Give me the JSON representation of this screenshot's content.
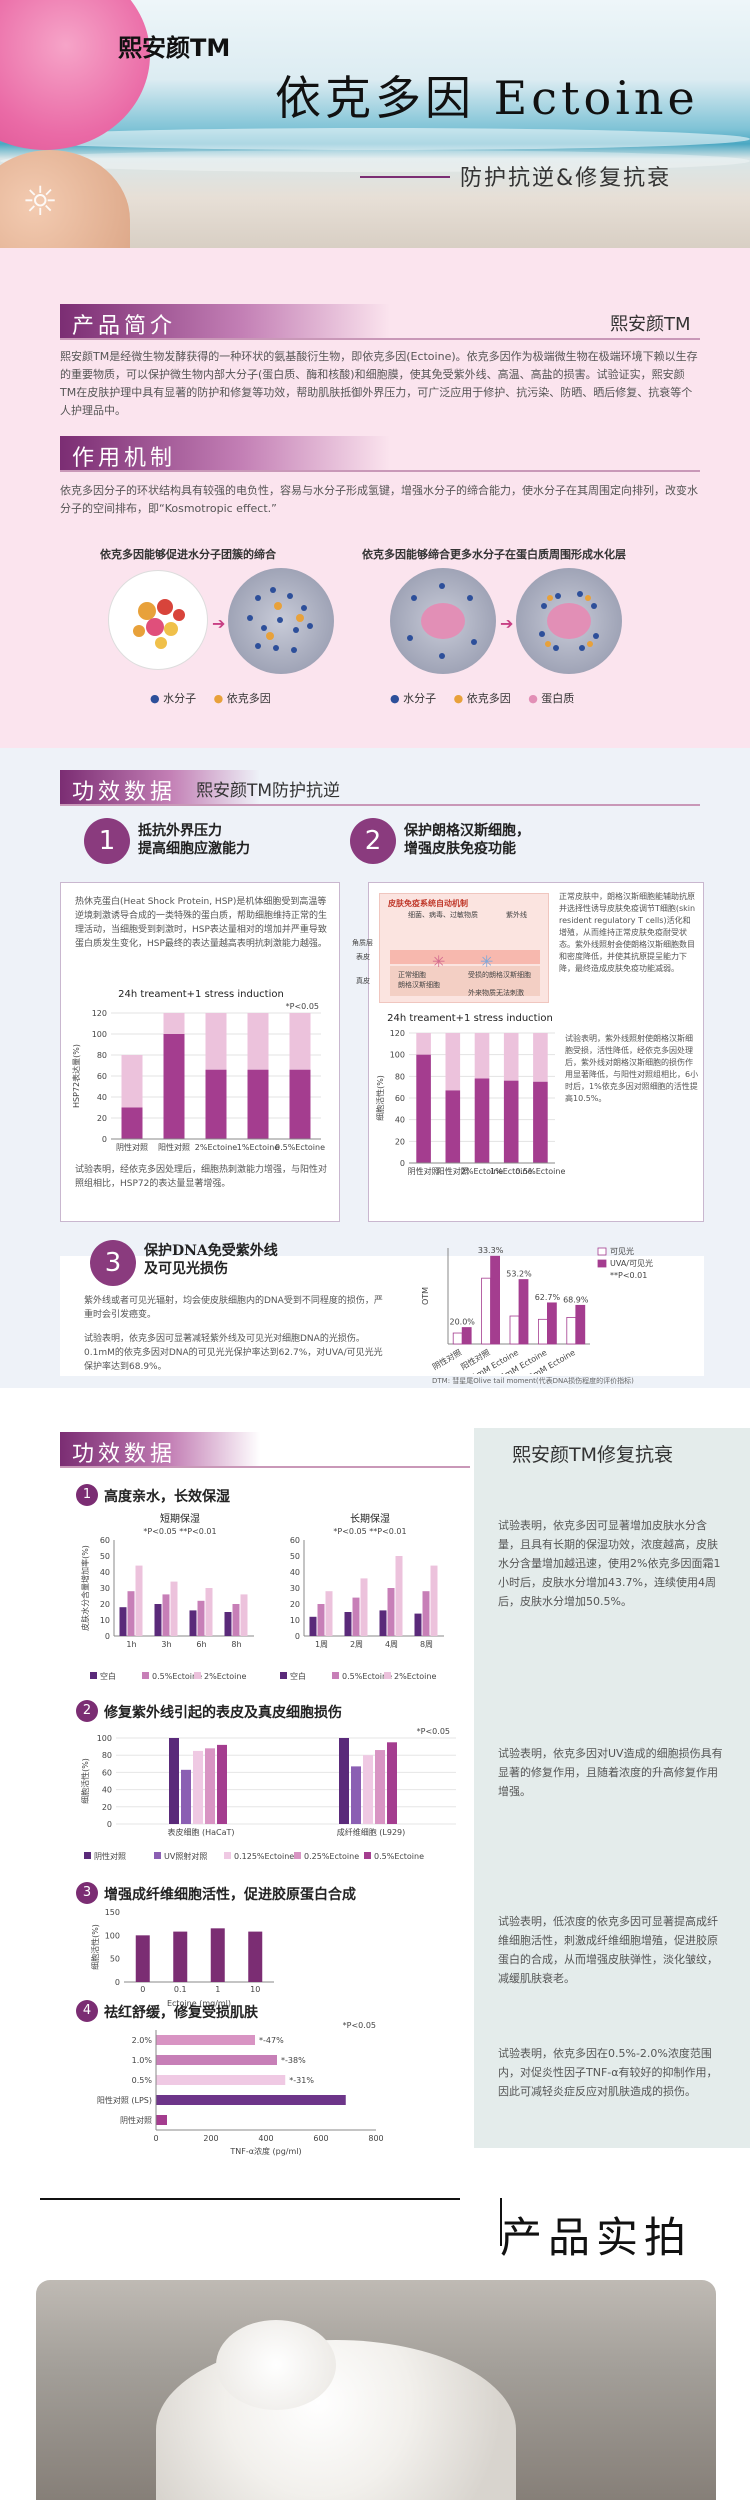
{
  "hero": {
    "brand": "熙安颜TM",
    "title": "依克多因 Ectoine",
    "subtitle": "防护抗逆&修复抗衰"
  },
  "intro": {
    "section_title": "产品简介",
    "brand": "熙安颜TM",
    "paragraph": "熙安颜TM是经微生物发酵获得的一种环状的氨基酸衍生物，即依克多因(Ectoine)。依克多因作为极端微生物在极端环境下赖以生存的重要物质，可以保护微生物内部大分子(蛋白质、酶和核酸)和细胞膜，使其免受紫外线、高温、高盐的损害。试验证实，熙安颜TM在皮肤护理中具有显著的防护和修复等功效，帮助肌肤抵御外界压力，可广泛应用于修护、抗污染、防晒、晒后修复、抗衰等个人护理品中。"
  },
  "mechanism": {
    "section_title": "作用机制",
    "paragraph": "依克多因分子的环状结构具有较强的电负性，容易与水分子形成氢键，增强水分子的缔合能力，使水分子在其周围定向排列，改变水分子的空间排布，即“Kosmotropic effect.”",
    "left_caption": "依克多因能够促进水分子团簇的缔合",
    "right_caption": "依克多因能够缔合更多水分子在蛋白质周围形成水化层",
    "legend_left": [
      "水分子",
      "依克多因"
    ],
    "legend_right": [
      "水分子",
      "依克多因",
      "蛋白质"
    ]
  },
  "efficacy1": {
    "section_title": "功效数据",
    "brand": "熙安颜TM防护抗逆",
    "card1": {
      "number": "1",
      "title": "抵抗外界压力\n提高细胞应激能力",
      "text": "热休克蛋白(Heat Shock Protein, HSP)是机体细胞受到高温等逆境刺激诱导合成的一类特殊的蛋白质，帮助细胞维持正常的生理活动，当细胞受到刺激时，HSP表达量相对的增加并严重导致蛋白质发生变化，HSP最终的表达量越高表明抗刺激能力越强。",
      "footer": "试验表明，经依克多因处理后，细胞热刺激能力增强，与阳性对照组相比，HSP72的表达量显著增强。"
    },
    "card2": {
      "number": "2",
      "title": "保护朗格汉斯细胞，\n增强皮肤免疫功能",
      "diagram_title": "皮肤免疫系统自动机制",
      "diagram_labels": [
        "细菌、病毒、过敏物质",
        "紫外线",
        "角质层",
        "表皮",
        "真皮",
        "正常细胞",
        "朗格汉斯细胞",
        "受损的朗格汉斯细胞",
        "外来物质无法刺激"
      ],
      "text": "正常皮肤中，朗格汉斯细胞能辅助抗原并选择性诱导皮肤免疫调节T细胞(skin resident regulatory T cells)活化和增殖，从而维持正常皮肤免疫耐受状态。紫外线照射会使朗格汉斯细胞数目和密度降低，并使其抗原提呈能力下降，最终造成皮肤免疫功能减弱。",
      "footer": "试验表明，紫外线照射使朗格汉斯细胞受损，活性降低，经依克多因处理后，紫外线对朗格汉斯细胞的损伤作用显著降低，与阳性对照组相比，6小时后，1%依克多因对照细胞的活性提高10.5%。"
    },
    "card3": {
      "number": "3",
      "title": "保护DNA免受紫外线\n及可见光损伤",
      "text1": "紫外线或者可见光辐射，均会使皮肤细胞内的DNA受到不同程度的损伤，严重时会引发癌变。",
      "text2": "试验表明，依克多因可显著减轻紫外线及可见光对细胞DNA的光损伤。0.1mM的依克多因对DNA的可见光光保护率达到62.7%，对UVA/可见光光保护率达到68.9%。",
      "chart_note": "DTM: 彗星尾Olive tail moment(代表DNA损伤程度的评价指标)"
    }
  },
  "efficacy2": {
    "section_title": "功效数据",
    "brand": "熙安颜TM修复抗衰",
    "items": [
      {
        "number": "1",
        "title": "高度亲水，长效保湿",
        "text": "试验表明，依克多因可显著增加皮肤水分含量，且具有长期的保湿功效，浓度越高，皮肤水分含量增加越迅速，使用2%依克多因面霜1小时后，皮肤水分增加43.7%，连续使用4周后，皮肤水分增加50.5%。"
      },
      {
        "number": "2",
        "title": "修复紫外线引起的表皮及真皮细胞损伤",
        "text": "试验表明，依克多因对UV造成的细胞损伤具有显著的修复作用，且随着浓度的升高修复作用增强。"
      },
      {
        "number": "3",
        "title": "增强成纤维细胞活性，促进胶原蛋白合成",
        "text": "试验表明，低浓度的依克多因可显著提高成纤维细胞活性，刺激成纤维细胞增殖，促进胶原蛋白的合成，从而增强皮肤弹性，淡化皱纹，减缓肌肤衰老。"
      },
      {
        "number": "4",
        "title": "祛红舒缓，修复受损肌肤",
        "text": "试验表明，依克多因在0.5%-2.0%浓度范围内，对促炎性因子TNF-α有较好的抑制作用，因此可减轻炎症反应对肌肤造成的损伤。"
      }
    ]
  },
  "photo": {
    "title": "产品实拍"
  },
  "chart_data": [
    {
      "type": "bar",
      "title": "24h treament+1 stress induction",
      "categories": [
        "阴性对照",
        "阳性对照",
        "2%Ectoine",
        "1%Ectoine",
        "0.5%Ectoine"
      ],
      "series": [
        {
          "values": [
            30,
            100,
            66,
            66,
            66
          ]
        },
        {
          "values": [
            50,
            50,
            70,
            70,
            70
          ]
        }
      ],
      "ylabel": "HSP72表达量(%)",
      "ylim": [
        0,
        120
      ],
      "note": "*P<0.05"
    },
    {
      "type": "bar",
      "title": "24h treament+1 stress induction",
      "categories": [
        "阴性对照",
        "阳性对照",
        "2%Ectoine",
        "1%Ectoine",
        "0.5%Ectoine"
      ],
      "series": [
        {
          "values": [
            100,
            67,
            78,
            76,
            75
          ]
        },
        {
          "values": [
            105,
            110,
            92,
            90,
            88
          ]
        }
      ],
      "ylabel": "细胞活性(%)",
      "ylim": [
        0,
        120
      ]
    },
    {
      "type": "bar",
      "categories": [
        "阴性对照",
        "阳性对照",
        "0.1mM Ectoine",
        "0.25mM Ectoine",
        "0.5mM Ectoine"
      ],
      "series": [
        {
          "name": "可见光",
          "values": [
            4,
            24,
            10.2,
            9,
            9.7
          ]
        },
        {
          "name": "UVA/可见光",
          "values": [
            6,
            32,
            23.5,
            15,
            14.1
          ]
        }
      ],
      "labels": [
        "20.0%",
        "33.3%",
        "53.2%",
        "62.7%",
        "68.9%"
      ],
      "ylabel": "OTM",
      "note": "**P<0.01"
    },
    {
      "type": "bar",
      "title": "短期保湿",
      "categories": [
        "1h",
        "3h",
        "6h",
        "8h"
      ],
      "series": [
        {
          "name": "空白",
          "values": [
            18,
            20,
            16,
            15
          ]
        },
        {
          "name": "0.5%Ectoine",
          "values": [
            28,
            26,
            22,
            20
          ]
        },
        {
          "name": "2%Ectoine",
          "values": [
            44,
            34,
            30,
            26
          ]
        }
      ],
      "ylabel": "皮肤水分含量增加率(%)",
      "ylim": [
        0,
        60
      ],
      "note": "*P<0.05  **P<0.01"
    },
    {
      "type": "bar",
      "title": "长期保湿",
      "categories": [
        "1周",
        "2周",
        "4周",
        "8周"
      ],
      "series": [
        {
          "name": "空白",
          "values": [
            12,
            15,
            16,
            14
          ]
        },
        {
          "name": "0.5%Ectoine",
          "values": [
            20,
            24,
            30,
            28
          ]
        },
        {
          "name": "2%Ectoine",
          "values": [
            28,
            36,
            50,
            44
          ]
        }
      ],
      "ylim": [
        0,
        60
      ],
      "note": "*P<0.05  **P<0.01"
    },
    {
      "type": "bar",
      "categories": [
        "表皮细胞 (HaCaT)",
        "成纤维细胞 (L929)"
      ],
      "series": [
        {
          "name": "阴性对照",
          "values": [
            100,
            100
          ]
        },
        {
          "name": "UV照射对照",
          "values": [
            63,
            67
          ]
        },
        {
          "name": "0.125%Ectoine",
          "values": [
            85,
            80
          ]
        },
        {
          "name": "0.25%Ectoine",
          "values": [
            88,
            86
          ]
        },
        {
          "name": "0.5%Ectoine",
          "values": [
            92,
            95
          ]
        }
      ],
      "ylabel": "细胞活性(%)",
      "ylim": [
        0,
        100
      ],
      "note": "*P<0.05"
    },
    {
      "type": "bar",
      "categories": [
        "0",
        "0.1",
        "1",
        "10"
      ],
      "values": [
        100,
        108,
        115,
        108
      ],
      "xlabel": "Ectoine (mg/ml)",
      "ylabel": "细胞活性(%)",
      "ylim": [
        0,
        150
      ]
    },
    {
      "type": "bar",
      "orientation": "horizontal",
      "categories": [
        "2.0%",
        "1.0%",
        "0.5%",
        "阳性对照 (LPS)",
        "阴性对照"
      ],
      "values": [
        360,
        440,
        470,
        690,
        40
      ],
      "labels": [
        "*-47%",
        "*-38%",
        "*-31%",
        "",
        ""
      ],
      "xlabel": "TNF-α浓度 (pg/ml)",
      "xlim": [
        0,
        800
      ],
      "note": "*P<0.05"
    }
  ]
}
